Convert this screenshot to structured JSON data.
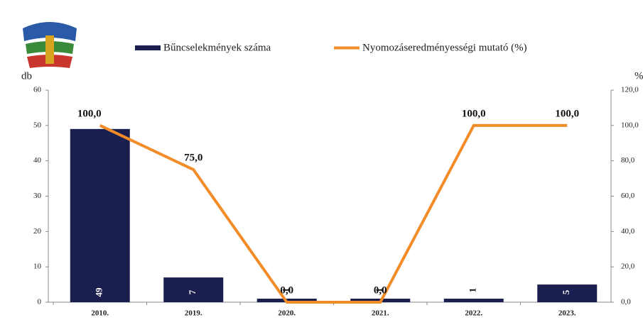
{
  "chart_data": {
    "type": "bar-line",
    "categories": [
      "2010.",
      "2019.",
      "2020.",
      "2021.",
      "2022.",
      "2023."
    ],
    "series": [
      {
        "name": "Bűncselekmények száma",
        "color": "#1b1f4f",
        "type": "bar",
        "values": [
          49,
          7,
          1,
          1,
          1,
          5
        ]
      },
      {
        "name": "Nyomozáseredményességi mutató (%)",
        "color": "#f28c28",
        "type": "line",
        "axis": "y2",
        "values": [
          100,
          75,
          0,
          0,
          100,
          100
        ],
        "value_labels": [
          "100,0",
          "75,0",
          "0,0",
          "0,0",
          "100,0",
          "100,0"
        ]
      }
    ],
    "ylabel": "db",
    "y2label": "%",
    "ylim": [
      0,
      60
    ],
    "yticks": [
      0,
      10,
      20,
      30,
      40,
      50,
      60
    ],
    "y2lim": [
      0,
      120
    ],
    "y2ticks": [
      {
        "value": 0,
        "label": "0,0"
      },
      {
        "value": 20,
        "label": "20,0"
      },
      {
        "value": 40,
        "label": "40,0"
      },
      {
        "value": 60,
        "label": "60,0"
      },
      {
        "value": 80,
        "label": "80,0"
      },
      {
        "value": 100,
        "label": "100,0"
      },
      {
        "value": 120,
        "label": "120,0"
      }
    ]
  }
}
